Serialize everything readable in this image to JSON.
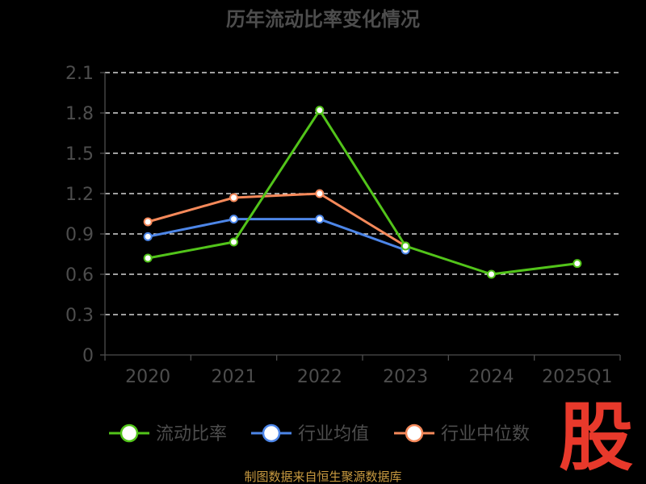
{
  "source": "制图数据来自恒生聚源数据库",
  "watermark_text": "股",
  "chart_data": {
    "type": "line",
    "title": "历年流动比率变化情况",
    "categories": [
      "2020",
      "2021",
      "2022",
      "2023",
      "2024",
      "2025Q1"
    ],
    "y_ticks": [
      "0",
      "0.3",
      "0.6",
      "0.9",
      "1.2",
      "1.5",
      "1.8",
      "2.1"
    ],
    "ylim": [
      0,
      2.1
    ],
    "grid": true,
    "legend_position": "bottom",
    "series": [
      {
        "name": "流动比率",
        "color": "#52c41a",
        "values": [
          0.72,
          0.84,
          1.82,
          0.81,
          0.6,
          0.68
        ]
      },
      {
        "name": "行业均值",
        "color": "#4d86e8",
        "values": [
          0.88,
          1.01,
          1.01,
          0.78,
          null,
          null
        ]
      },
      {
        "name": "行业中位数",
        "color": "#f5895a",
        "values": [
          0.99,
          1.17,
          1.2,
          0.81,
          null,
          null
        ]
      }
    ]
  },
  "colors": {
    "background": "#000000",
    "axis": "#4d4d4d",
    "grid": "#ffffff",
    "text": "#4d4d4d",
    "source": "#c89a40",
    "watermark": "#e8392b"
  }
}
